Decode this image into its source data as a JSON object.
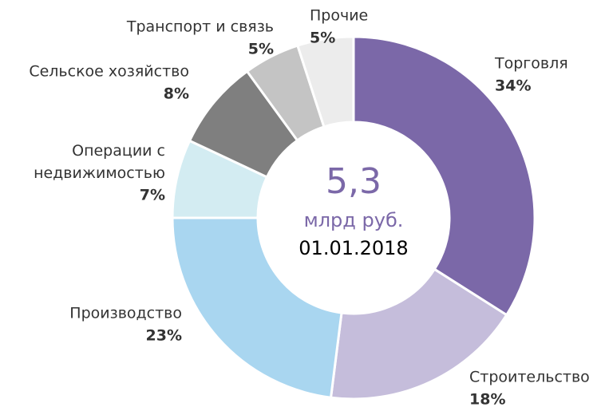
{
  "chart_data": {
    "type": "pie",
    "categories": [
      "Торговля",
      "Строительство",
      "Производство",
      "Операции с недвижимостью",
      "Сельское хозяйство",
      "Транспорт и связь",
      "Прочие"
    ],
    "values": [
      34,
      18,
      23,
      7,
      8,
      5,
      5
    ],
    "value_labels": [
      "34%",
      "18%",
      "23%",
      "7%",
      "8%",
      "5%",
      "5%"
    ],
    "colors": [
      "#7b68a8",
      "#c5bddb",
      "#a9d6f0",
      "#d3ecf2",
      "#7f7f7f",
      "#c4c4c4",
      "#ececec"
    ],
    "center_text": {
      "value": "5,3",
      "unit": "млрд руб.",
      "date": "01.01.2018"
    }
  }
}
